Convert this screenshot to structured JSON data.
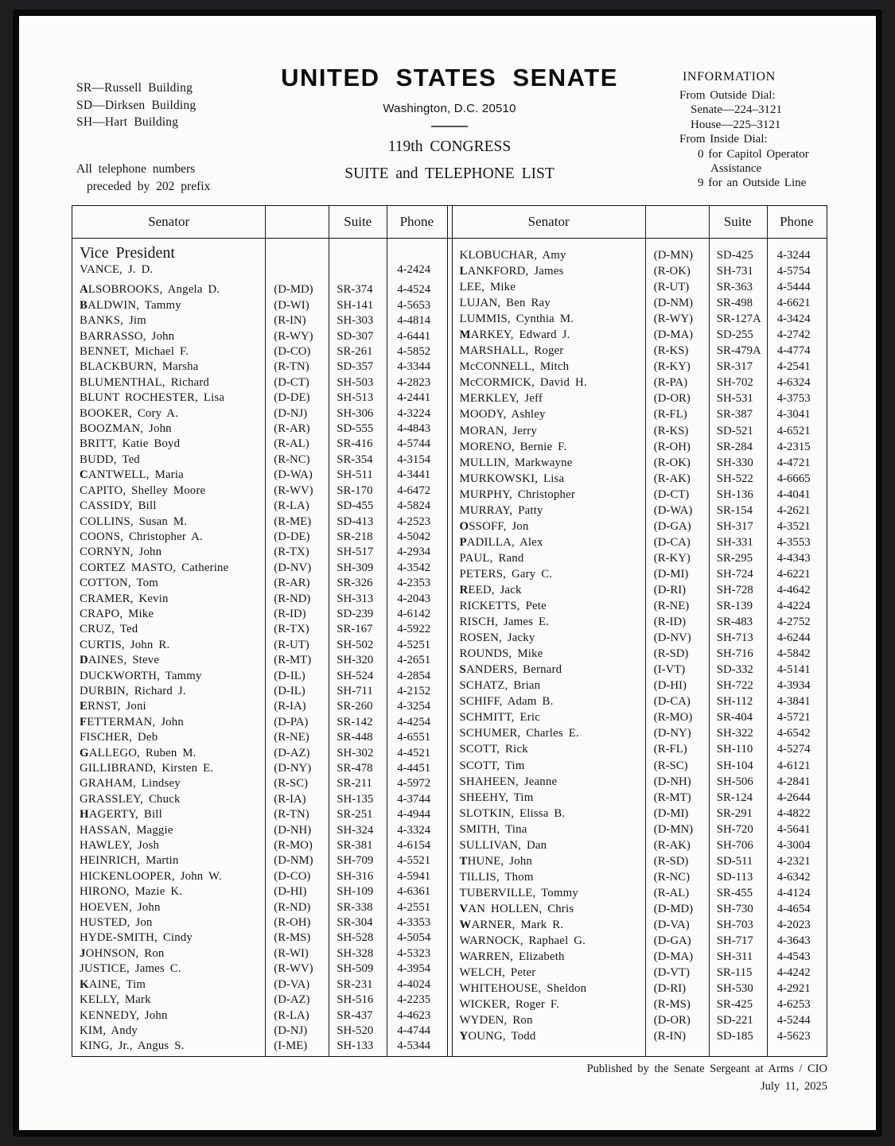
{
  "page": {
    "legend": [
      "SR—Russell Building",
      "SD—Dirksen Building",
      "SH—Hart Building"
    ],
    "phone_note": [
      "All telephone numbers",
      "preceded by 202 prefix"
    ],
    "title": "UNITED STATES SENATE",
    "address": "Washington, D.C. 20510",
    "congress": "119th CONGRESS",
    "subtitle": "SUITE and TELEPHONE LIST",
    "info": {
      "heading": "INFORMATION",
      "lines": [
        {
          "t": "From Outside Dial:",
          "i": 0
        },
        {
          "t": "Senate—224–3121",
          "i": 1
        },
        {
          "t": "House—225–3121",
          "i": 1
        },
        {
          "t": "From Inside Dial:",
          "i": 0
        },
        {
          "t": "0 for Capitol Operator",
          "i": 2
        },
        {
          "t": "Assistance",
          "i": 3
        },
        {
          "t": "9 for an Outside Line",
          "i": 2
        }
      ]
    },
    "footer": [
      "Published by the Senate Sergeant at Arms / CIO",
      "July 11, 2025"
    ]
  },
  "table": {
    "headers": {
      "senator": "Senator",
      "suite": "Suite",
      "phone": "Phone"
    },
    "vp_heading": "Vice President",
    "vp_row": [
      "VANCE, J. D.",
      "",
      "",
      "4-2424",
      0
    ],
    "left_rows": [
      [
        "ALSOBROOKS, Angela D.",
        "(D-MD)",
        "SR-374",
        "4-4524",
        1
      ],
      [
        "BALDWIN, Tammy",
        "(D-WI)",
        "SH-141",
        "4-5653",
        1
      ],
      [
        "BANKS, Jim",
        "(R-IN)",
        "SH-303",
        "4-4814",
        0
      ],
      [
        "BARRASSO, John",
        "(R-WY)",
        "SD-307",
        "4-6441",
        0
      ],
      [
        "BENNET, Michael F.",
        "(D-CO)",
        "SR-261",
        "4-5852",
        0
      ],
      [
        "BLACKBURN, Marsha",
        "(R-TN)",
        "SD-357",
        "4-3344",
        0
      ],
      [
        "BLUMENTHAL, Richard",
        "(D-CT)",
        "SH-503",
        "4-2823",
        0
      ],
      [
        "BLUNT ROCHESTER, Lisa",
        "(D-DE)",
        "SH-513",
        "4-2441",
        0
      ],
      [
        "BOOKER, Cory A.",
        "(D-NJ)",
        "SH-306",
        "4-3224",
        0
      ],
      [
        "BOOZMAN, John",
        "(R-AR)",
        "SD-555",
        "4-4843",
        0
      ],
      [
        "BRITT, Katie Boyd",
        "(R-AL)",
        "SR-416",
        "4-5744",
        0
      ],
      [
        "BUDD, Ted",
        "(R-NC)",
        "SR-354",
        "4-3154",
        0
      ],
      [
        "CANTWELL, Maria",
        "(D-WA)",
        "SH-511",
        "4-3441",
        1
      ],
      [
        "CAPITO, Shelley Moore",
        "(R-WV)",
        "SR-170",
        "4-6472",
        0
      ],
      [
        "CASSIDY, Bill",
        "(R-LA)",
        "SD-455",
        "4-5824",
        0
      ],
      [
        "COLLINS, Susan M.",
        "(R-ME)",
        "SD-413",
        "4-2523",
        0
      ],
      [
        "COONS, Christopher A.",
        "(D-DE)",
        "SR-218",
        "4-5042",
        0
      ],
      [
        "CORNYN, John",
        "(R-TX)",
        "SH-517",
        "4-2934",
        0
      ],
      [
        "CORTEZ MASTO, Catherine",
        "(D-NV)",
        "SH-309",
        "4-3542",
        0
      ],
      [
        "COTTON, Tom",
        "(R-AR)",
        "SR-326",
        "4-2353",
        0
      ],
      [
        "CRAMER, Kevin",
        "(R-ND)",
        "SH-313",
        "4-2043",
        0
      ],
      [
        "CRAPO, Mike",
        "(R-ID)",
        "SD-239",
        "4-6142",
        0
      ],
      [
        "CRUZ, Ted",
        "(R-TX)",
        "SR-167",
        "4-5922",
        0
      ],
      [
        "CURTIS, John R.",
        "(R-UT)",
        "SH-502",
        "4-5251",
        0
      ],
      [
        "DAINES, Steve",
        "(R-MT)",
        "SH-320",
        "4-2651",
        1
      ],
      [
        "DUCKWORTH, Tammy",
        "(D-IL)",
        "SH-524",
        "4-2854",
        0
      ],
      [
        "DURBIN, Richard J.",
        "(D-IL)",
        "SH-711",
        "4-2152",
        0
      ],
      [
        "ERNST, Joni",
        "(R-IA)",
        "SR-260",
        "4-3254",
        1
      ],
      [
        "FETTERMAN, John",
        "(D-PA)",
        "SR-142",
        "4-4254",
        1
      ],
      [
        "FISCHER, Deb",
        "(R-NE)",
        "SR-448",
        "4-6551",
        0
      ],
      [
        "GALLEGO, Ruben M.",
        "(D-AZ)",
        "SH-302",
        "4-4521",
        1
      ],
      [
        "GILLIBRAND, Kirsten E.",
        "(D-NY)",
        "SR-478",
        "4-4451",
        0
      ],
      [
        "GRAHAM, Lindsey",
        "(R-SC)",
        "SR-211",
        "4-5972",
        0
      ],
      [
        "GRASSLEY, Chuck",
        "(R-IA)",
        "SH-135",
        "4-3744",
        0
      ],
      [
        "HAGERTY, Bill",
        "(R-TN)",
        "SR-251",
        "4-4944",
        1
      ],
      [
        "HASSAN, Maggie",
        "(D-NH)",
        "SH-324",
        "4-3324",
        0
      ],
      [
        "HAWLEY, Josh",
        "(R-MO)",
        "SR-381",
        "4-6154",
        0
      ],
      [
        "HEINRICH, Martin",
        "(D-NM)",
        "SH-709",
        "4-5521",
        0
      ],
      [
        "HICKENLOOPER, John W.",
        "(D-CO)",
        "SH-316",
        "4-5941",
        0
      ],
      [
        "HIRONO, Mazie K.",
        "(D-HI)",
        "SH-109",
        "4-6361",
        0
      ],
      [
        "HOEVEN, John",
        "(R-ND)",
        "SR-338",
        "4-2551",
        0
      ],
      [
        "HUSTED, Jon",
        "(R-OH)",
        "SR-304",
        "4-3353",
        0
      ],
      [
        "HYDE-SMITH, Cindy",
        "(R-MS)",
        "SH-528",
        "4-5054",
        0
      ],
      [
        "JOHNSON, Ron",
        "(R-WI)",
        "SH-328",
        "4-5323",
        1
      ],
      [
        "JUSTICE, James C.",
        "(R-WV)",
        "SH-509",
        "4-3954",
        0
      ],
      [
        "KAINE, Tim",
        "(D-VA)",
        "SR-231",
        "4-4024",
        1
      ],
      [
        "KELLY, Mark",
        "(D-AZ)",
        "SH-516",
        "4-2235",
        0
      ],
      [
        "KENNEDY, John",
        "(R-LA)",
        "SR-437",
        "4-4623",
        0
      ],
      [
        "KIM, Andy",
        "(D-NJ)",
        "SH-520",
        "4-4744",
        0
      ],
      [
        "KING, Jr., Angus S.",
        "(I-ME)",
        "SH-133",
        "4-5344",
        0
      ]
    ],
    "right_rows": [
      [
        "KLOBUCHAR, Amy",
        "(D-MN)",
        "SD-425",
        "4-3244",
        0
      ],
      [
        "LANKFORD, James",
        "(R-OK)",
        "SH-731",
        "4-5754",
        1
      ],
      [
        "LEE, Mike",
        "(R-UT)",
        "SR-363",
        "4-5444",
        0
      ],
      [
        "LUJAN, Ben Ray",
        "(D-NM)",
        "SR-498",
        "4-6621",
        0
      ],
      [
        "LUMMIS, Cynthia M.",
        "(R-WY)",
        "SR-127A",
        "4-3424",
        0
      ],
      [
        "MARKEY, Edward J.",
        "(D-MA)",
        "SD-255",
        "4-2742",
        1
      ],
      [
        "MARSHALL, Roger",
        "(R-KS)",
        "SR-479A",
        "4-4774",
        0
      ],
      [
        "McCONNELL, Mitch",
        "(R-KY)",
        "SR-317",
        "4-2541",
        0
      ],
      [
        "McCORMICK, David H.",
        "(R-PA)",
        "SH-702",
        "4-6324",
        0
      ],
      [
        "MERKLEY, Jeff",
        "(D-OR)",
        "SH-531",
        "4-3753",
        0
      ],
      [
        "MOODY, Ashley",
        "(R-FL)",
        "SR-387",
        "4-3041",
        0
      ],
      [
        "MORAN, Jerry",
        "(R-KS)",
        "SD-521",
        "4-6521",
        0
      ],
      [
        "MORENO, Bernie F.",
        "(R-OH)",
        "SR-284",
        "4-2315",
        0
      ],
      [
        "MULLIN, Markwayne",
        "(R-OK)",
        "SH-330",
        "4-4721",
        0
      ],
      [
        "MURKOWSKI, Lisa",
        "(R-AK)",
        "SH-522",
        "4-6665",
        0
      ],
      [
        "MURPHY, Christopher",
        "(D-CT)",
        "SH-136",
        "4-4041",
        0
      ],
      [
        "MURRAY, Patty",
        "(D-WA)",
        "SR-154",
        "4-2621",
        0
      ],
      [
        "OSSOFF, Jon",
        "(D-GA)",
        "SH-317",
        "4-3521",
        1
      ],
      [
        "PADILLA, Alex",
        "(D-CA)",
        "SH-331",
        "4-3553",
        1
      ],
      [
        "PAUL, Rand",
        "(R-KY)",
        "SR-295",
        "4-4343",
        0
      ],
      [
        "PETERS, Gary C.",
        "(D-MI)",
        "SH-724",
        "4-6221",
        0
      ],
      [
        "REED, Jack",
        "(D-RI)",
        "SH-728",
        "4-4642",
        1
      ],
      [
        "RICKETTS, Pete",
        "(R-NE)",
        "SR-139",
        "4-4224",
        0
      ],
      [
        "RISCH, James E.",
        "(R-ID)",
        "SR-483",
        "4-2752",
        0
      ],
      [
        "ROSEN, Jacky",
        "(D-NV)",
        "SH-713",
        "4-6244",
        0
      ],
      [
        "ROUNDS, Mike",
        "(R-SD)",
        "SH-716",
        "4-5842",
        0
      ],
      [
        "SANDERS, Bernard",
        "(I-VT)",
        "SD-332",
        "4-5141",
        1
      ],
      [
        "SCHATZ, Brian",
        "(D-HI)",
        "SH-722",
        "4-3934",
        0
      ],
      [
        "SCHIFF, Adam B.",
        "(D-CA)",
        "SH-112",
        "4-3841",
        0
      ],
      [
        "SCHMITT, Eric",
        "(R-MO)",
        "SR-404",
        "4-5721",
        0
      ],
      [
        "SCHUMER, Charles E.",
        "(D-NY)",
        "SH-322",
        "4-6542",
        0
      ],
      [
        "SCOTT, Rick",
        "(R-FL)",
        "SH-110",
        "4-5274",
        0
      ],
      [
        "SCOTT, Tim",
        "(R-SC)",
        "SH-104",
        "4-6121",
        0
      ],
      [
        "SHAHEEN, Jeanne",
        "(D-NH)",
        "SH-506",
        "4-2841",
        0
      ],
      [
        "SHEEHY, Tim",
        "(R-MT)",
        "SR-124",
        "4-2644",
        0
      ],
      [
        "SLOTKIN, Elissa B.",
        "(D-MI)",
        "SR-291",
        "4-4822",
        0
      ],
      [
        "SMITH, Tina",
        "(D-MN)",
        "SH-720",
        "4-5641",
        0
      ],
      [
        "SULLIVAN, Dan",
        "(R-AK)",
        "SH-706",
        "4-3004",
        0
      ],
      [
        "THUNE, John",
        "(R-SD)",
        "SD-511",
        "4-2321",
        1
      ],
      [
        "TILLIS, Thom",
        "(R-NC)",
        "SD-113",
        "4-6342",
        0
      ],
      [
        "TUBERVILLE, Tommy",
        "(R-AL)",
        "SR-455",
        "4-4124",
        0
      ],
      [
        "VAN HOLLEN, Chris",
        "(D-MD)",
        "SH-730",
        "4-4654",
        1
      ],
      [
        "WARNER, Mark R.",
        "(D-VA)",
        "SH-703",
        "4-2023",
        1
      ],
      [
        "WARNOCK, Raphael G.",
        "(D-GA)",
        "SH-717",
        "4-3643",
        0
      ],
      [
        "WARREN, Elizabeth",
        "(D-MA)",
        "SH-311",
        "4-4543",
        0
      ],
      [
        "WELCH, Peter",
        "(D-VT)",
        "SR-115",
        "4-4242",
        0
      ],
      [
        "WHITEHOUSE, Sheldon",
        "(D-RI)",
        "SH-530",
        "4-2921",
        0
      ],
      [
        "WICKER, Roger F.",
        "(R-MS)",
        "SR-425",
        "4-6253",
        0
      ],
      [
        "WYDEN, Ron",
        "(D-OR)",
        "SD-221",
        "4-5244",
        0
      ],
      [
        "YOUNG, Todd",
        "(R-IN)",
        "SD-185",
        "4-5623",
        1
      ]
    ]
  }
}
